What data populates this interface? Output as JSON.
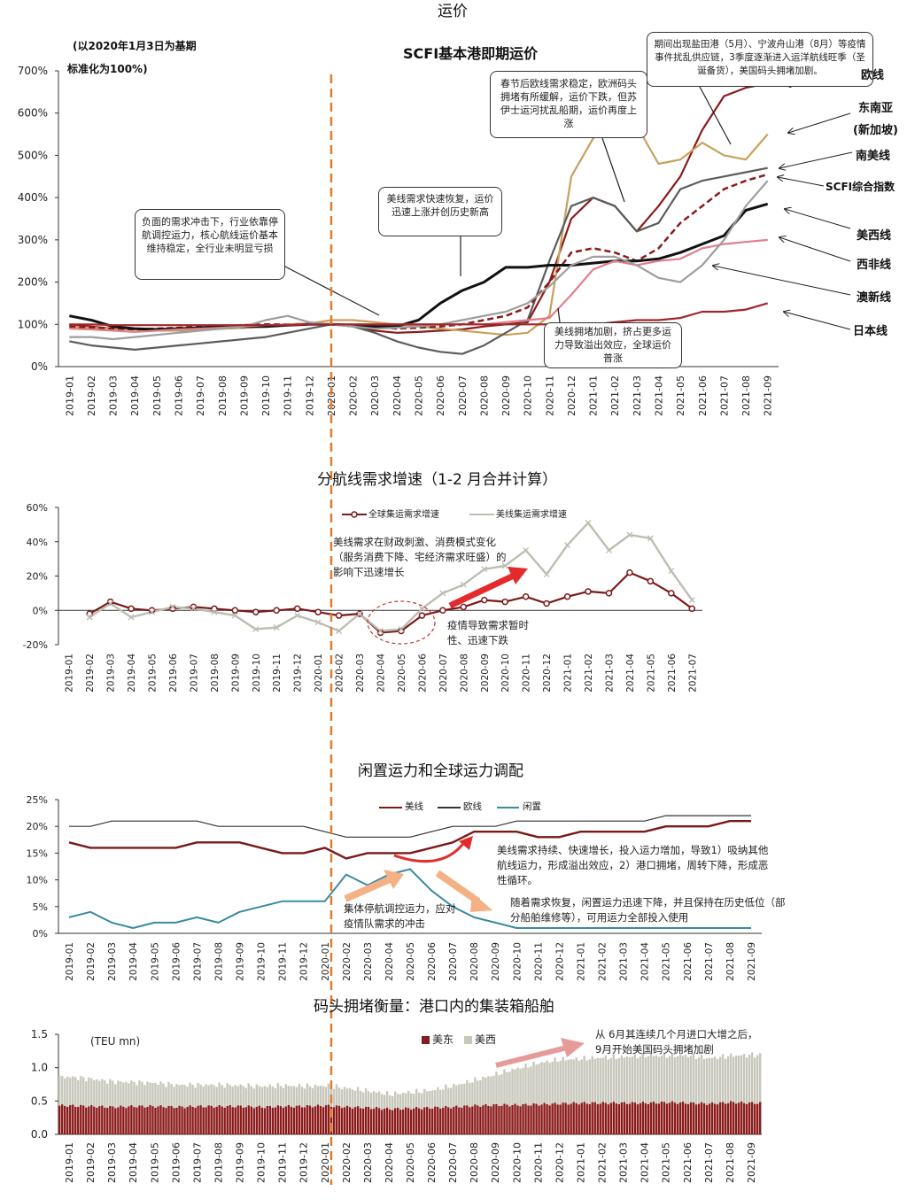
{
  "page": {
    "header": "运价"
  },
  "chart_data": [
    {
      "id": "scfi",
      "type": "line",
      "title": "SCFI基本港即期运价",
      "subtitle_line1": "(以2020年1月3日为基期",
      "subtitle_line2": "标准化为100%)",
      "x": [
        "2019-01",
        "2019-02",
        "2019-03",
        "2019-04",
        "2019-05",
        "2019-06",
        "2019-07",
        "2019-08",
        "2019-09",
        "2019-10",
        "2019-11",
        "2019-12",
        "2020-01",
        "2020-02",
        "2020-03",
        "2020-04",
        "2020-05",
        "2020-06",
        "2020-07",
        "2020-08",
        "2020-09",
        "2020-10",
        "2020-11",
        "2020-12",
        "2021-01",
        "2021-02",
        "2021-03",
        "2021-04",
        "2021-05",
        "2021-06",
        "2021-07",
        "2021-08",
        "2021-09"
      ],
      "ylim": [
        0,
        700
      ],
      "yticks": [
        "0%",
        "100%",
        "200%",
        "300%",
        "400%",
        "500%",
        "600%",
        "700%"
      ],
      "series": [
        {
          "name": "欧线",
          "color": "#8b1a1a",
          "dashed": false,
          "values": [
            100,
            95,
            90,
            90,
            88,
            85,
            88,
            90,
            92,
            95,
            100,
            102,
            100,
            95,
            85,
            80,
            82,
            85,
            88,
            95,
            100,
            105,
            200,
            350,
            400,
            380,
            320,
            380,
            450,
            560,
            640,
            660,
            670
          ]
        },
        {
          "name": "东南亚(新加坡)",
          "color": "#c9a05a",
          "dashed": false,
          "values": [
            95,
            92,
            90,
            88,
            85,
            85,
            88,
            90,
            92,
            95,
            100,
            102,
            110,
            110,
            105,
            100,
            95,
            90,
            85,
            80,
            75,
            80,
            120,
            450,
            540,
            575,
            570,
            480,
            490,
            530,
            500,
            490,
            550
          ]
        },
        {
          "name": "南美线",
          "color": "#5c5c5c",
          "dashed": false,
          "values": [
            60,
            50,
            45,
            40,
            45,
            50,
            55,
            60,
            65,
            70,
            80,
            90,
            100,
            95,
            80,
            60,
            45,
            35,
            30,
            50,
            80,
            110,
            250,
            380,
            400,
            380,
            320,
            340,
            420,
            440,
            450,
            460,
            470
          ]
        },
        {
          "name": "SCFI综合指数",
          "color": "#8b1a1a",
          "dashed": true,
          "values": [
            95,
            92,
            90,
            88,
            90,
            92,
            95,
            95,
            98,
            100,
            100,
            100,
            100,
            98,
            95,
            90,
            92,
            95,
            100,
            110,
            120,
            140,
            200,
            270,
            280,
            270,
            250,
            280,
            340,
            380,
            420,
            440,
            455
          ]
        },
        {
          "name": "美西线",
          "color": "#111111",
          "dashed": false,
          "values": [
            120,
            110,
            95,
            90,
            88,
            90,
            92,
            95,
            95,
            95,
            98,
            100,
            100,
            98,
            95,
            95,
            110,
            150,
            180,
            200,
            235,
            235,
            240,
            240,
            245,
            250,
            250,
            255,
            270,
            290,
            310,
            370,
            385
          ]
        },
        {
          "name": "西非线",
          "color": "#e07f8a",
          "dashed": false,
          "values": [
            90,
            88,
            85,
            82,
            85,
            88,
            90,
            92,
            95,
            98,
            100,
            100,
            100,
            100,
            100,
            100,
            100,
            100,
            100,
            100,
            105,
            110,
            115,
            170,
            230,
            250,
            240,
            250,
            255,
            280,
            290,
            295,
            300
          ]
        },
        {
          "name": "澳新线",
          "color": "#9e9e9e",
          "dashed": false,
          "values": [
            70,
            70,
            65,
            70,
            75,
            80,
            85,
            90,
            95,
            110,
            120,
            105,
            100,
            95,
            90,
            92,
            95,
            100,
            110,
            120,
            130,
            150,
            190,
            240,
            260,
            260,
            240,
            210,
            200,
            240,
            300,
            380,
            440
          ]
        },
        {
          "name": "日本线",
          "color": "#a0262a",
          "dashed": false,
          "values": [
            100,
            100,
            98,
            98,
            98,
            98,
            98,
            98,
            98,
            98,
            98,
            100,
            100,
            100,
            100,
            100,
            100,
            100,
            100,
            100,
            100,
            100,
            100,
            100,
            100,
            105,
            110,
            110,
            115,
            130,
            130,
            135,
            150
          ]
        }
      ],
      "annotations": [
        "负面的需求冲击下，行业依靠停航调控运力，核心航线运价基本维持稳定，全行业未明显亏损",
        "美线需求快速恢复，运价迅速上涨并创历史新高",
        "春节后欧线需求稳定，欧洲码头拥堵有所缓解，运价下跌，但苏伊士运河扰乱船期，运价再度上涨",
        "期间出现盐田港（5月）、宁波舟山港（8月）等疫情事件扰乱供应链，3季度逐渐进入运洋航线旺季（圣诞备货），美国码头拥堵加剧。",
        "美线拥堵加剧，挤占更多运力导致溢出效应，全球运价普涨"
      ]
    },
    {
      "id": "demand",
      "type": "line",
      "title": "分航线需求增速（1-2 月合并计算）",
      "x": [
        "2019-01",
        "2019-02",
        "2019-03",
        "2019-04",
        "2019-05",
        "2019-06",
        "2019-07",
        "2019-08",
        "2019-09",
        "2019-10",
        "2019-11",
        "2019-12",
        "2020-01",
        "2020-02",
        "2020-03",
        "2020-04",
        "2020-05",
        "2020-06",
        "2020-07",
        "2020-08",
        "2020-09",
        "2020-10",
        "2020-11",
        "2020-12",
        "2021-01",
        "2021-02",
        "2021-03",
        "2021-04",
        "2021-05",
        "2021-06",
        "2021-07"
      ],
      "ylim": [
        -20,
        60
      ],
      "yticks": [
        "-20%",
        "0%",
        "20%",
        "40%",
        "60%"
      ],
      "series": [
        {
          "name": "全球集运需求增速",
          "color": "#7a1a1a",
          "values": [
            null,
            -2,
            5,
            1,
            0,
            1,
            2,
            1,
            0,
            -1,
            0,
            1,
            -1,
            -3,
            -2,
            -13,
            -12,
            -3,
            0,
            2,
            6,
            5,
            8,
            4,
            8,
            11,
            10,
            22,
            17,
            10,
            1
          ]
        },
        {
          "name": "美线集运需求增速",
          "color": "#bdbdb2",
          "values": [
            null,
            -4,
            4,
            -4,
            -1,
            2,
            1,
            -1,
            -3,
            -11,
            -10,
            -3,
            -7,
            -12,
            -2,
            -12,
            -11,
            1,
            10,
            15,
            24,
            26,
            35,
            21,
            38,
            51,
            35,
            44,
            42,
            23,
            6
          ]
        }
      ],
      "annotations": [
        "美线需求在财政刺激、消费模式变化（服务消费下降、宅经济需求旺盛）的影响下迅速增长",
        "疫情导致需求暂时性、迅速下跌"
      ]
    },
    {
      "id": "capacity",
      "type": "line",
      "title": "闲置运力和全球运力调配",
      "x": [
        "2019-01",
        "2019-02",
        "2019-03",
        "2019-04",
        "2019-05",
        "2019-06",
        "2019-07",
        "2019-08",
        "2019-09",
        "2019-10",
        "2019-11",
        "2019-12",
        "2020-01",
        "2020-02",
        "2020-03",
        "2020-04",
        "2020-05",
        "2020-06",
        "2020-07",
        "2020-08",
        "2020-09",
        "2020-10",
        "2020-11",
        "2020-12",
        "2021-01",
        "2021-02",
        "2021-03",
        "2021-04",
        "2021-05",
        "2021-06",
        "2021-07",
        "2021-08",
        "2021-09"
      ],
      "ylim": [
        0,
        25
      ],
      "yticks": [
        "0%",
        "5%",
        "10%",
        "15%",
        "20%",
        "25%"
      ],
      "series": [
        {
          "name": "美线",
          "color": "#7a1a1a",
          "values": [
            17,
            16,
            16,
            16,
            16,
            16,
            17,
            17,
            17,
            16,
            15,
            15,
            16,
            14,
            15,
            15,
            15,
            16,
            17,
            19,
            19,
            19,
            18,
            18,
            19,
            19,
            19,
            19,
            20,
            20,
            20,
            21,
            21
          ]
        },
        {
          "name": "欧线",
          "color": "#333333",
          "values": [
            20,
            20,
            21,
            21,
            21,
            21,
            21,
            20,
            20,
            20,
            20,
            20,
            19,
            18,
            18,
            18,
            18,
            19,
            20,
            20,
            20,
            21,
            21,
            21,
            21,
            21,
            21,
            21,
            22,
            22,
            22,
            22,
            22
          ]
        },
        {
          "name": "闲置",
          "color": "#3a8aa0",
          "values": [
            3,
            4,
            2,
            1,
            2,
            2,
            3,
            2,
            4,
            5,
            6,
            6,
            6,
            11,
            9,
            11,
            12,
            8,
            5,
            3,
            2,
            1,
            1,
            1,
            1,
            1,
            1,
            1,
            1,
            1,
            1,
            1,
            1
          ]
        }
      ],
      "annotations": [
        "美线需求持续、快速增长，投入运力增加，导致1）吸纳其他航线运力，形成溢出效应，2）港口拥堵，周转下降，形成恶性循环。",
        "集体停航调控运力，应对疫情队需求的冲击",
        "随着需求恢复，闲置运力迅速下降，并且保持在历史低位（部分船舶维修等），可用运力全部投入使用"
      ]
    },
    {
      "id": "congestion",
      "type": "bar",
      "title": "码头拥堵衡量：港口内的集装箱船舶",
      "unit": "(TEU mn)",
      "x": [
        "2019-01",
        "2019-02",
        "2019-03",
        "2019-04",
        "2019-05",
        "2019-06",
        "2019-07",
        "2019-08",
        "2019-09",
        "2019-10",
        "2019-11",
        "2019-12",
        "2020-01",
        "2020-02",
        "2020-03",
        "2020-04",
        "2020-05",
        "2020-06",
        "2020-07",
        "2020-08",
        "2020-09",
        "2020-10",
        "2020-11",
        "2020-12",
        "2021-01",
        "2021-02",
        "2021-03",
        "2021-04",
        "2021-05",
        "2021-06",
        "2021-07",
        "2021-08",
        "2021-09"
      ],
      "ylim": [
        0,
        1.5
      ],
      "yticks": [
        "0.0",
        "0.5",
        "1.0",
        "1.5"
      ],
      "stacked": true,
      "series": [
        {
          "name": "美东",
          "color": "#8b1a1a",
          "values": [
            0.43,
            0.42,
            0.41,
            0.42,
            0.42,
            0.41,
            0.42,
            0.42,
            0.42,
            0.41,
            0.42,
            0.42,
            0.43,
            0.41,
            0.4,
            0.38,
            0.39,
            0.4,
            0.41,
            0.43,
            0.44,
            0.44,
            0.45,
            0.46,
            0.47,
            0.47,
            0.47,
            0.47,
            0.48,
            0.47,
            0.46,
            0.48,
            0.47
          ]
        },
        {
          "name": "美西",
          "color": "#c8c7bb",
          "values": [
            0.43,
            0.41,
            0.38,
            0.36,
            0.35,
            0.33,
            0.32,
            0.32,
            0.31,
            0.31,
            0.31,
            0.3,
            0.3,
            0.28,
            0.25,
            0.22,
            0.24,
            0.26,
            0.32,
            0.38,
            0.46,
            0.55,
            0.62,
            0.66,
            0.66,
            0.68,
            0.69,
            0.71,
            0.7,
            0.71,
            0.68,
            0.7,
            0.72
          ]
        }
      ],
      "annotations": [
        "从 6月其连续几个月进口大增之后，9月开始美国码头拥堵加剧"
      ]
    }
  ]
}
